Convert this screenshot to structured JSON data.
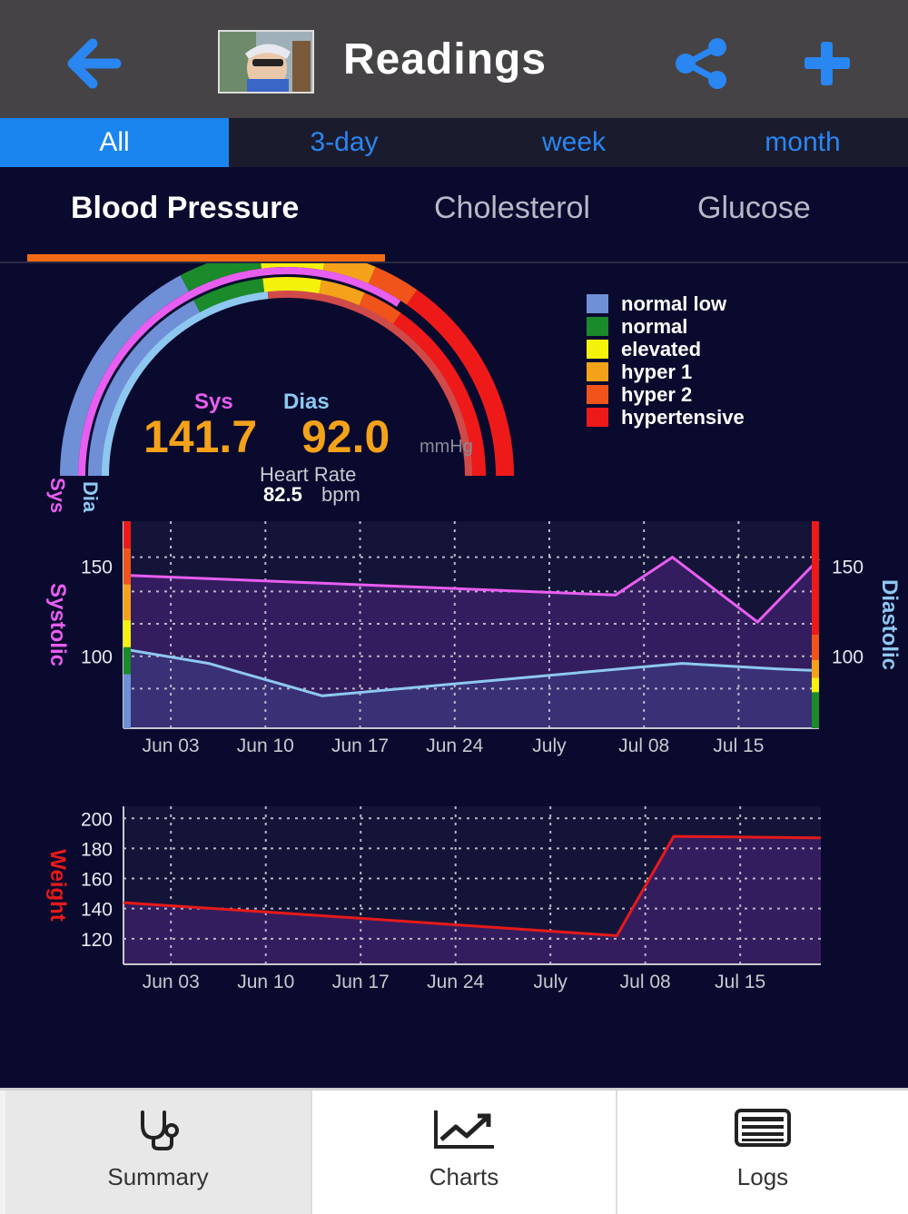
{
  "header": {
    "title": "Readings"
  },
  "period_tabs": [
    {
      "label": "All",
      "active": true
    },
    {
      "label": "3-day",
      "active": false
    },
    {
      "label": "week",
      "active": false
    },
    {
      "label": "month",
      "active": false
    }
  ],
  "metric_tabs": [
    {
      "label": "Blood Pressure",
      "active": true
    },
    {
      "label": "Cholesterol",
      "active": false
    },
    {
      "label": "Glucose",
      "active": false
    }
  ],
  "gauge": {
    "sys_label": "Sys",
    "dias_label": "Dias",
    "sys_value": "141.7",
    "dias_value": "92.0",
    "unit": "mmHg",
    "hr_label": "Heart Rate",
    "hr_value": "82.5",
    "hr_unit": "bpm",
    "arc_sys_label": "Sys",
    "arc_dia_label": "Dia"
  },
  "legend": [
    {
      "label": "normal low",
      "color": "#6f8fd6"
    },
    {
      "label": "normal",
      "color": "#1a8a2a"
    },
    {
      "label": "elevated",
      "color": "#f4f20a"
    },
    {
      "label": "hyper 1",
      "color": "#f4a21a"
    },
    {
      "label": "hyper 2",
      "color": "#f0541a"
    },
    {
      "label": "hypertensive",
      "color": "#ee1a1a"
    }
  ],
  "chart_data": [
    {
      "type": "line",
      "x": [
        "Jun 03",
        "Jun 10",
        "Jun 17",
        "Jun 24",
        "July",
        "Jul 08",
        "Jul 15"
      ],
      "series": [
        {
          "name": "Systolic",
          "color": "#e85ef0",
          "points": [
            [
              -0.5,
              145
            ],
            [
              4.7,
              134
            ],
            [
              5.3,
              155
            ],
            [
              6.2,
              119
            ],
            [
              7.9,
              154
            ]
          ]
        },
        {
          "name": "Diastolic",
          "color": "#8ec8f0",
          "points": [
            [
              -0.5,
              104
            ],
            [
              0.4,
              96
            ],
            [
              1.6,
              78
            ],
            [
              5.4,
              96
            ],
            [
              6.4,
              93
            ],
            [
              7.9,
              92
            ]
          ]
        }
      ],
      "ylabel": "Systolic",
      "y2label": "Diastolic",
      "yticks": [
        100,
        150
      ],
      "y2ticks": [
        100,
        150
      ],
      "ylim": [
        60,
        175
      ],
      "grid": true
    },
    {
      "type": "line",
      "x": [
        "Jun 03",
        "Jun 10",
        "Jun 17",
        "Jun 24",
        "July",
        "Jul 08",
        "Jul 15"
      ],
      "series": [
        {
          "name": "Weight",
          "color": "#e61a1a",
          "points": [
            [
              -0.5,
              144
            ],
            [
              1.2,
              137
            ],
            [
              4.7,
              122
            ],
            [
              5.3,
              188
            ],
            [
              7.9,
              187
            ]
          ]
        }
      ],
      "ylabel": "Weight",
      "yticks": [
        120,
        140,
        160,
        180,
        200
      ],
      "ylim": [
        103,
        208
      ],
      "grid": true
    }
  ],
  "tabbar": [
    {
      "label": "Summary",
      "icon": "stethoscope-icon",
      "active": true
    },
    {
      "label": "Charts",
      "icon": "line-chart-icon",
      "active": false
    },
    {
      "label": "Logs",
      "icon": "logs-list-icon",
      "active": false
    }
  ]
}
